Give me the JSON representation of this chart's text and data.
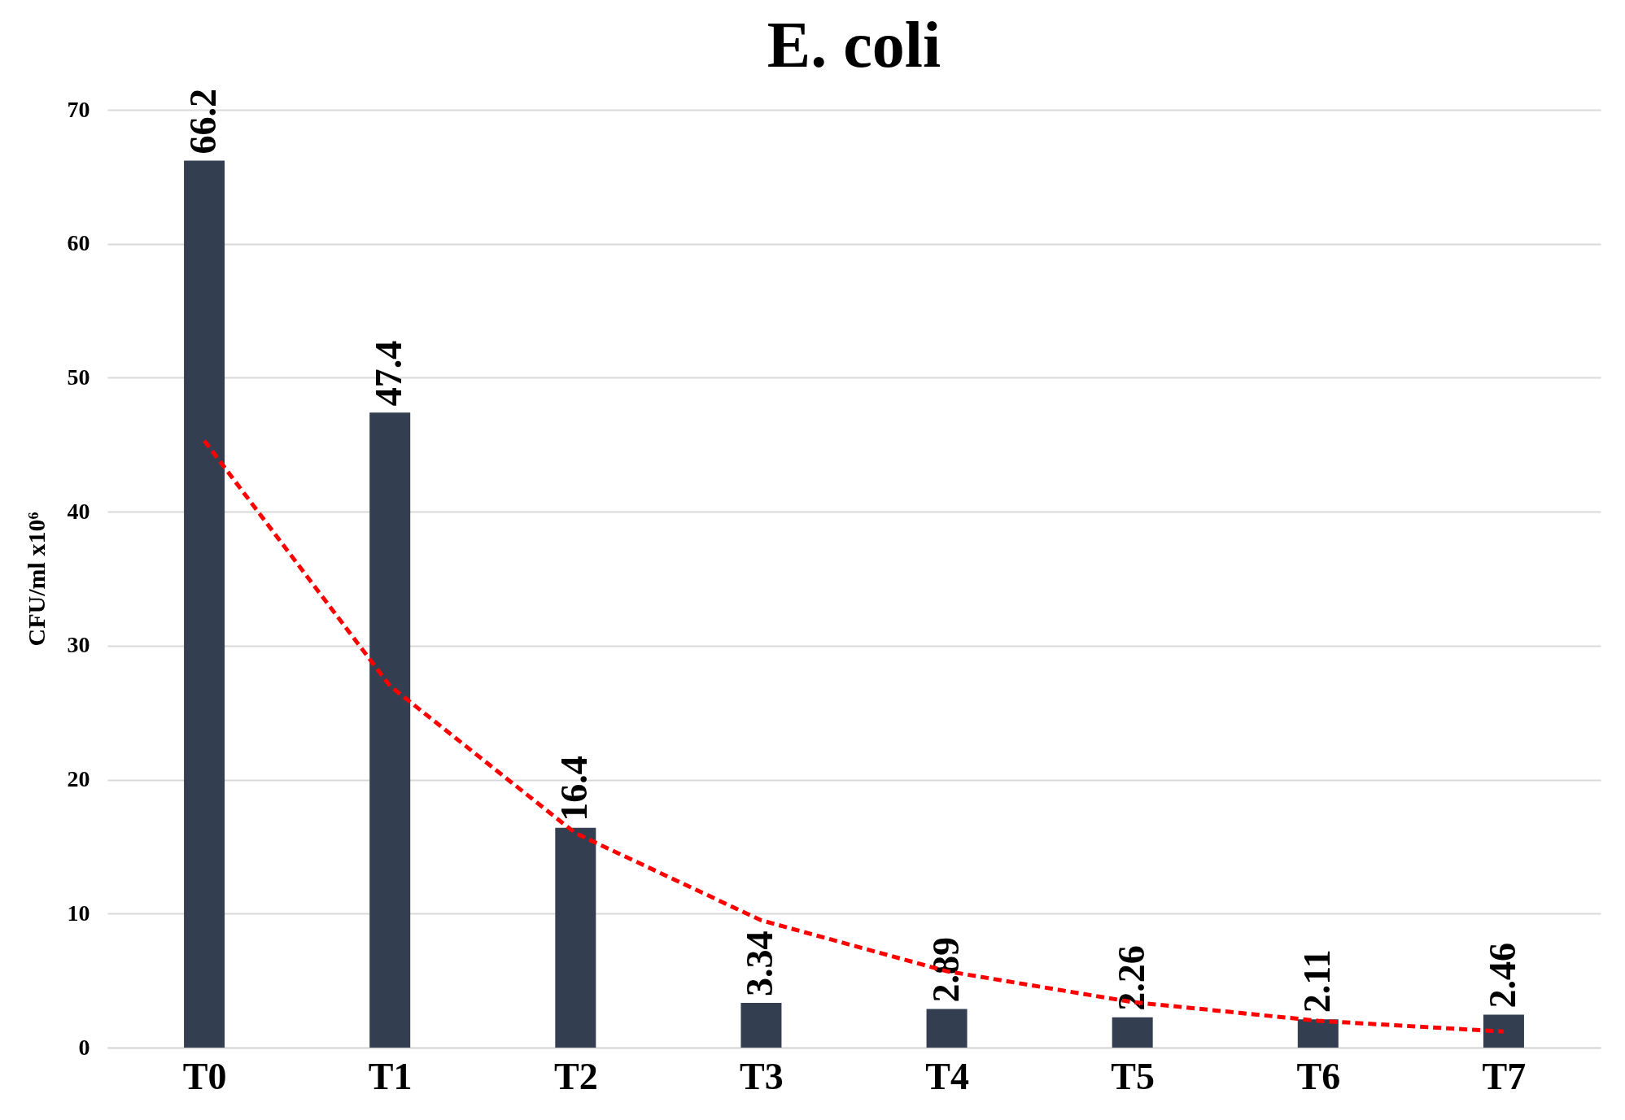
{
  "chart_data": {
    "type": "bar",
    "title": "E. coli",
    "ylabel": "CFU/ml x10⁶",
    "categories": [
      "T0",
      "T1",
      "T2",
      "T3",
      "T4",
      "T5",
      "T6",
      "T7"
    ],
    "series": [
      {
        "color": "#333f50",
        "values": [
          66.2,
          47.4,
          16.4,
          3.34,
          2.89,
          2.26,
          2.11,
          2.46
        ],
        "value_labels": [
          "66.2",
          "47.4",
          "16.4",
          "3.34",
          "2.89",
          "2.26",
          "2.11",
          "2.46"
        ]
      },
      {
        "type": "line",
        "color": "#ff0000",
        "line_style": "dashed",
        "values": [
          45.3,
          27.0,
          16.0,
          9.5,
          5.7,
          3.4,
          2.0,
          1.2
        ]
      }
    ],
    "ylim": [
      0,
      70
    ],
    "yticks": [
      0,
      10,
      20,
      30,
      40,
      50,
      60,
      70
    ],
    "grid": "y"
  }
}
